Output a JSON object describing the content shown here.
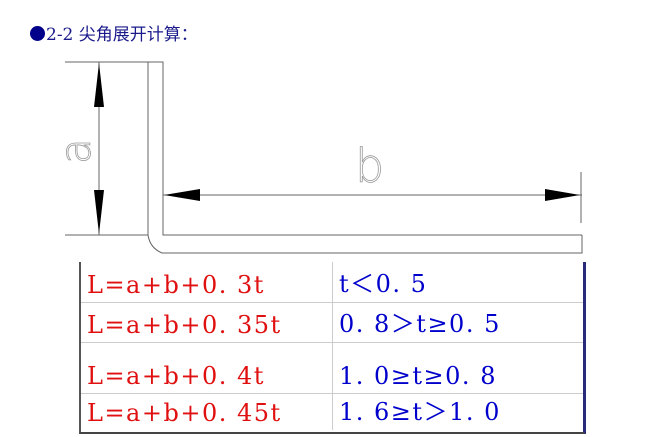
{
  "title": {
    "bullet": "bullet-icon",
    "text": "2-2 尖角展开计算："
  },
  "diagram": {
    "label_a": "a",
    "label_b": "b"
  },
  "table": {
    "rows": [
      {
        "formula": "L=a+b+0. 3t",
        "condition": "t＜0. 5"
      },
      {
        "formula": "L=a+b+0. 35t",
        "condition": "0. 8＞t≥0. 5"
      },
      {
        "formula": "L=a+b+0. 4t",
        "condition": "1. 0≥t≥0. 8"
      },
      {
        "formula": "L=a+b+0. 45t",
        "condition": "1. 6≥t＞1. 0"
      }
    ]
  },
  "colors": {
    "title": "#1a1a8c",
    "formula": "#e01010",
    "condition": "#0000cc"
  }
}
